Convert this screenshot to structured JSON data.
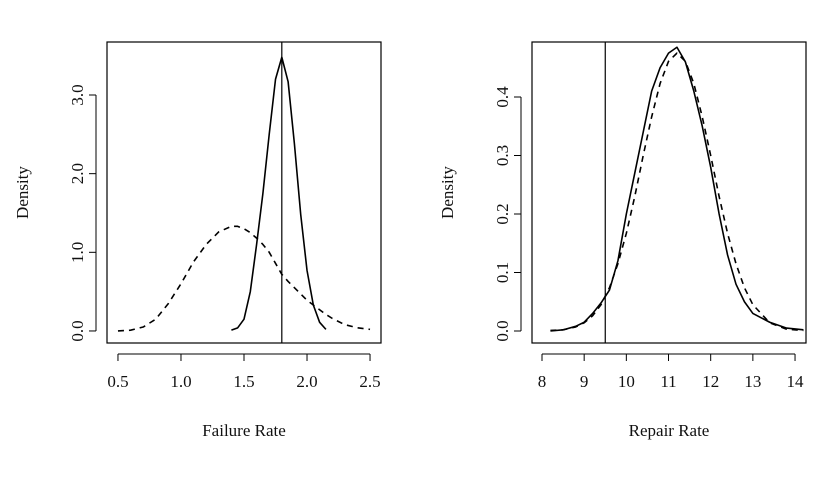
{
  "chart_data": [
    {
      "type": "line",
      "xlabel": "Failure Rate",
      "ylabel": "Density",
      "xlim": [
        0.413,
        2.587
      ],
      "ylim": [
        -0.153,
        3.674
      ],
      "xticks": [
        0.5,
        {
          "value": 1.0,
          "label": "1.0"
        },
        1.5,
        {
          "value": 2.0,
          "label": "2.0"
        },
        2.5
      ],
      "yticks": [
        {
          "value": 0,
          "label": "0.0"
        },
        {
          "value": 1,
          "label": "1.0"
        },
        {
          "value": 2,
          "label": "2.0"
        },
        {
          "value": 3,
          "label": "3.0"
        }
      ],
      "vline": 1.8,
      "x": [
        0.5,
        0.6,
        0.7,
        0.8,
        0.9,
        1.0,
        1.1,
        1.2,
        1.3,
        1.4,
        1.45,
        1.5,
        1.55,
        1.6,
        1.65,
        1.7,
        1.75,
        1.8,
        1.85,
        1.9,
        1.95,
        2.0,
        2.05,
        2.1,
        2.15,
        2.2,
        2.3,
        2.4,
        2.5
      ],
      "series": [
        {
          "color": "#000000",
          "linestyle": "solid",
          "values": [
            null,
            null,
            null,
            null,
            null,
            null,
            null,
            null,
            null,
            0.01,
            0.04,
            0.15,
            0.5,
            1.1,
            1.75,
            2.5,
            3.2,
            3.48,
            3.17,
            2.38,
            1.48,
            0.77,
            0.33,
            0.11,
            0.02,
            null,
            null,
            null,
            null
          ]
        },
        {
          "color": "#000000",
          "linestyle": "dashed",
          "values": [
            0.0,
            0.01,
            0.05,
            0.15,
            0.35,
            0.6,
            0.88,
            1.1,
            1.26,
            1.33,
            1.33,
            1.3,
            1.25,
            1.18,
            1.1,
            1.0,
            0.86,
            0.72,
            0.63,
            0.55,
            0.47,
            0.39,
            0.33,
            0.27,
            0.21,
            0.16,
            0.08,
            0.04,
            0.02
          ]
        }
      ]
    },
    {
      "type": "line",
      "xlabel": "Repair Rate",
      "ylabel": "Density",
      "xlim": [
        7.763,
        14.26
      ],
      "ylim": [
        -0.0205,
        0.494
      ],
      "xticks": [
        8,
        9,
        10,
        11,
        12,
        13,
        14
      ],
      "yticks": [
        {
          "value": 0,
          "label": "0.0"
        },
        0.1,
        0.2,
        0.3,
        0.4
      ],
      "vline": 9.5,
      "x": [
        8.2,
        8.5,
        8.8,
        9.0,
        9.2,
        9.4,
        9.6,
        9.8,
        10.0,
        10.2,
        10.4,
        10.6,
        10.8,
        11.0,
        11.2,
        11.4,
        11.6,
        11.8,
        12.0,
        12.2,
        12.4,
        12.6,
        12.8,
        13.0,
        13.4,
        13.8,
        14.2
      ],
      "series": [
        {
          "color": "#000000",
          "linestyle": "solid",
          "values": [
            0.0,
            0.002,
            0.008,
            0.015,
            0.03,
            0.048,
            0.07,
            0.12,
            0.2,
            0.27,
            0.34,
            0.41,
            0.45,
            0.475,
            0.485,
            0.46,
            0.41,
            0.35,
            0.28,
            0.2,
            0.13,
            0.08,
            0.05,
            0.03,
            0.015,
            0.005,
            0.002
          ]
        },
        {
          "color": "#000000",
          "linestyle": "dashed",
          "values": [
            0.001,
            0.002,
            0.007,
            0.014,
            0.026,
            0.045,
            0.074,
            0.115,
            0.167,
            0.23,
            0.3,
            0.366,
            0.423,
            0.461,
            0.475,
            0.461,
            0.423,
            0.366,
            0.3,
            0.23,
            0.167,
            0.115,
            0.074,
            0.045,
            0.014,
            0.003,
            0.001
          ]
        }
      ]
    }
  ]
}
